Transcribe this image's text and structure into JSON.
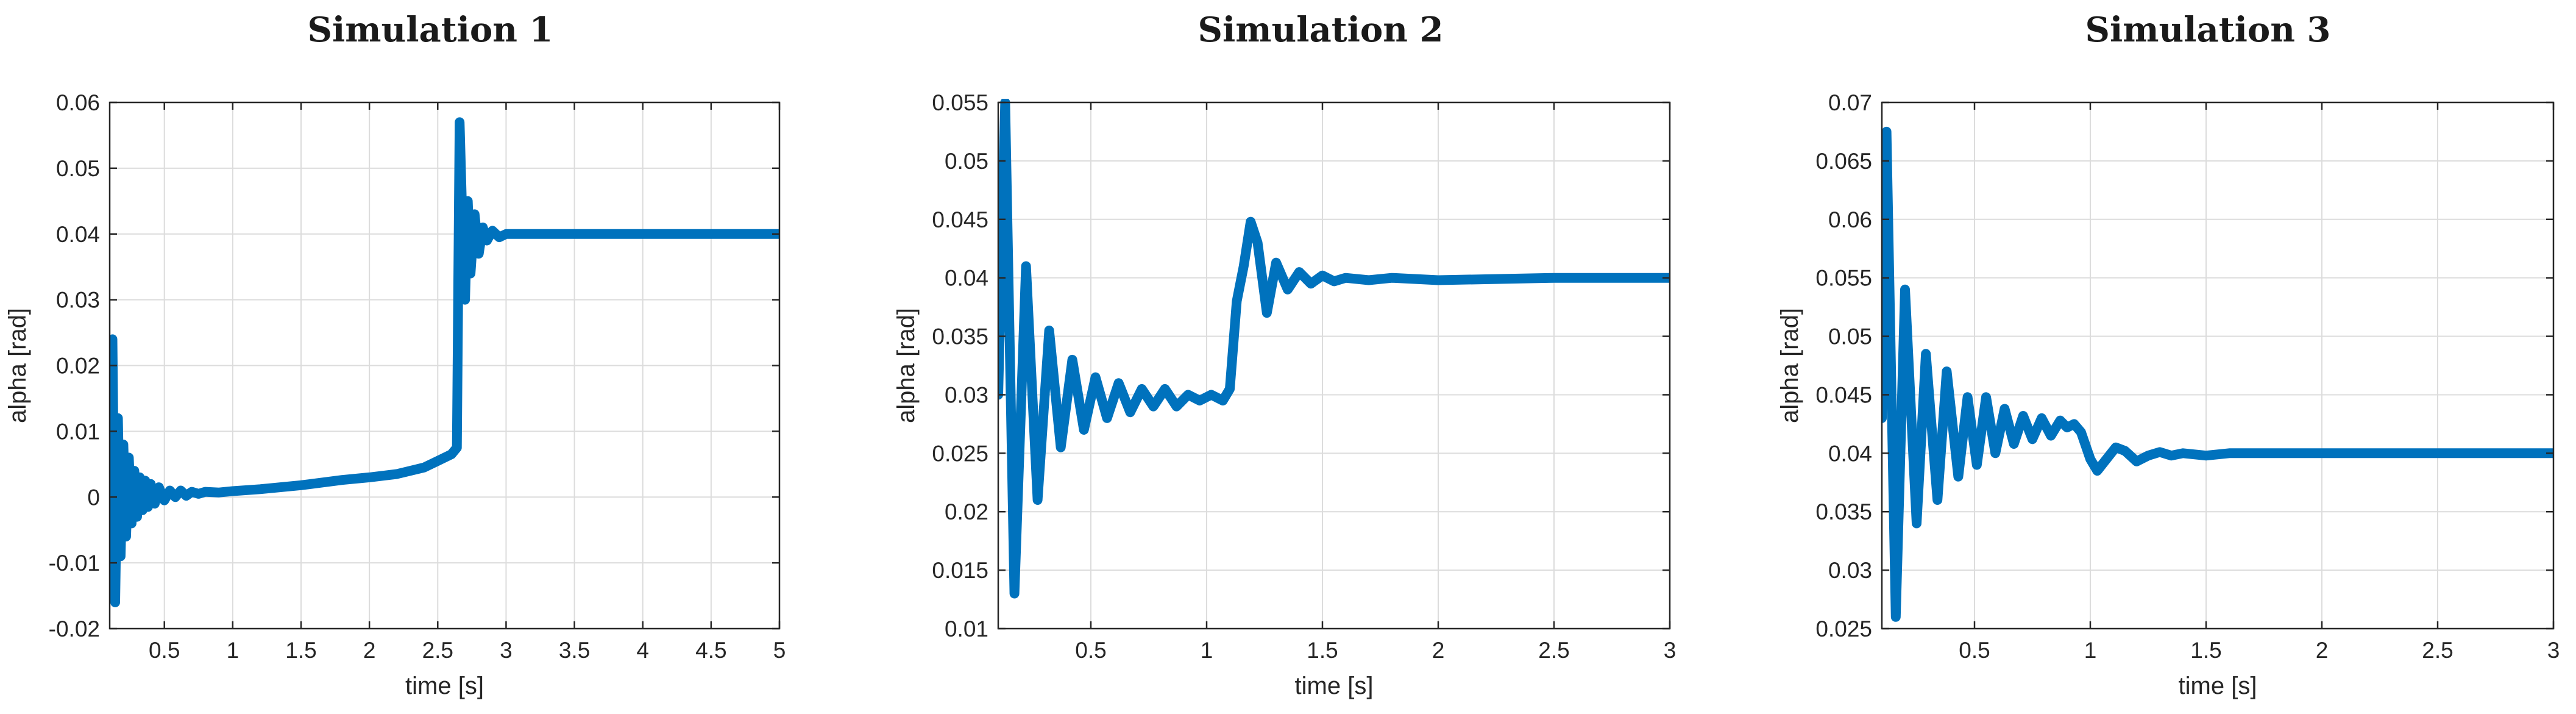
{
  "chart_data": [
    {
      "type": "line",
      "title": "Simulation 1",
      "xlabel": "time [s]",
      "ylabel": "alpha [rad]",
      "xlim": [
        0.1,
        5
      ],
      "ylim": [
        -0.02,
        0.06
      ],
      "xticks": [
        0.5,
        1,
        1.5,
        2,
        2.5,
        3,
        3.5,
        4,
        4.5,
        5
      ],
      "xtick_labels": [
        "0.5",
        "1",
        "1.5",
        "2",
        "2.5",
        "3",
        "3.5",
        "4",
        "4.5",
        "5"
      ],
      "yticks": [
        -0.02,
        -0.01,
        0,
        0.01,
        0.02,
        0.03,
        0.04,
        0.05,
        0.06
      ],
      "ytick_labels": [
        "-0.02",
        "-0.01",
        "0",
        "0.01",
        "0.02",
        "0.03",
        "0.04",
        "0.05",
        "0.06"
      ],
      "grid": true,
      "series": [
        {
          "name": "alpha",
          "color": "#0072BD",
          "x": [
            0.1,
            0.12,
            0.14,
            0.16,
            0.18,
            0.2,
            0.22,
            0.24,
            0.26,
            0.28,
            0.3,
            0.32,
            0.34,
            0.36,
            0.38,
            0.4,
            0.43,
            0.46,
            0.5,
            0.54,
            0.58,
            0.62,
            0.66,
            0.7,
            0.75,
            0.8,
            0.9,
            1.0,
            1.2,
            1.5,
            1.8,
            2.0,
            2.2,
            2.4,
            2.5,
            2.6,
            2.64,
            2.66,
            2.68,
            2.7,
            2.72,
            2.74,
            2.77,
            2.8,
            2.83,
            2.86,
            2.9,
            2.95,
            3.0,
            3.5,
            4.0,
            4.5,
            5.0
          ],
          "y": [
            0.0,
            0.024,
            -0.016,
            0.012,
            -0.009,
            0.008,
            -0.006,
            0.006,
            -0.004,
            0.004,
            -0.003,
            0.003,
            -0.002,
            0.0025,
            -0.0015,
            0.002,
            -0.001,
            0.0015,
            -0.0005,
            0.001,
            0.0,
            0.001,
            0.0002,
            0.0008,
            0.0005,
            0.0008,
            0.0007,
            0.0009,
            0.0012,
            0.0018,
            0.0026,
            0.003,
            0.0035,
            0.0045,
            0.0055,
            0.0065,
            0.0075,
            0.057,
            0.042,
            0.03,
            0.045,
            0.034,
            0.043,
            0.037,
            0.041,
            0.039,
            0.0405,
            0.0395,
            0.04,
            0.04,
            0.04,
            0.04,
            0.04
          ]
        }
      ]
    },
    {
      "type": "line",
      "title": "Simulation 2",
      "xlabel": "time [s]",
      "ylabel": "alpha [rad]",
      "xlim": [
        0.1,
        3
      ],
      "ylim": [
        0.01,
        0.055
      ],
      "xticks": [
        0.5,
        1,
        1.5,
        2,
        2.5,
        3
      ],
      "xtick_labels": [
        "0.5",
        "1",
        "1.5",
        "2",
        "2.5",
        "3"
      ],
      "yticks": [
        0.01,
        0.015,
        0.02,
        0.025,
        0.03,
        0.035,
        0.04,
        0.045,
        0.05,
        0.055
      ],
      "ytick_labels": [
        "0.01",
        "0.015",
        "0.02",
        "0.025",
        "0.03",
        "0.035",
        "0.04",
        "0.045",
        "0.05",
        "0.055"
      ],
      "grid": true,
      "series": [
        {
          "name": "alpha",
          "color": "#0072BD",
          "x": [
            0.1,
            0.13,
            0.17,
            0.22,
            0.27,
            0.32,
            0.37,
            0.42,
            0.47,
            0.52,
            0.57,
            0.62,
            0.67,
            0.72,
            0.77,
            0.82,
            0.87,
            0.92,
            0.97,
            1.02,
            1.07,
            1.1,
            1.13,
            1.16,
            1.19,
            1.22,
            1.26,
            1.3,
            1.35,
            1.4,
            1.45,
            1.5,
            1.55,
            1.6,
            1.7,
            1.8,
            2.0,
            2.5,
            3.0
          ],
          "y": [
            0.03,
            0.055,
            0.013,
            0.041,
            0.021,
            0.0355,
            0.0255,
            0.033,
            0.027,
            0.0315,
            0.028,
            0.031,
            0.0285,
            0.0305,
            0.029,
            0.0305,
            0.029,
            0.03,
            0.0295,
            0.03,
            0.0295,
            0.0305,
            0.038,
            0.041,
            0.0448,
            0.043,
            0.037,
            0.0413,
            0.039,
            0.0405,
            0.0395,
            0.0402,
            0.0397,
            0.04,
            0.0398,
            0.04,
            0.0398,
            0.04,
            0.04
          ]
        }
      ]
    },
    {
      "type": "line",
      "title": "Simulation 3",
      "xlabel": "time [s]",
      "ylabel": "alpha [rad]",
      "xlim": [
        0.1,
        3
      ],
      "ylim": [
        0.025,
        0.07
      ],
      "xticks": [
        0.5,
        1,
        1.5,
        2,
        2.5,
        3
      ],
      "xtick_labels": [
        "0.5",
        "1",
        "1.5",
        "2",
        "2.5",
        "3"
      ],
      "yticks": [
        0.025,
        0.03,
        0.035,
        0.04,
        0.045,
        0.05,
        0.055,
        0.06,
        0.065,
        0.07
      ],
      "ytick_labels": [
        "0.025",
        "0.03",
        "0.035",
        "0.04",
        "0.045",
        "0.05",
        "0.055",
        "0.06",
        "0.065",
        "0.07"
      ],
      "grid": true,
      "series": [
        {
          "name": "alpha",
          "color": "#0072BD",
          "x": [
            0.1,
            0.12,
            0.16,
            0.2,
            0.25,
            0.29,
            0.34,
            0.38,
            0.43,
            0.47,
            0.51,
            0.55,
            0.59,
            0.63,
            0.67,
            0.71,
            0.75,
            0.79,
            0.83,
            0.87,
            0.9,
            0.93,
            0.96,
            1.0,
            1.03,
            1.07,
            1.11,
            1.15,
            1.2,
            1.25,
            1.3,
            1.35,
            1.4,
            1.5,
            1.6,
            2.0,
            2.5,
            3.0
          ],
          "y": [
            0.043,
            0.0675,
            0.026,
            0.054,
            0.034,
            0.0485,
            0.036,
            0.047,
            0.038,
            0.0448,
            0.039,
            0.0448,
            0.04,
            0.0438,
            0.0408,
            0.0432,
            0.0412,
            0.043,
            0.0415,
            0.0428,
            0.0422,
            0.0425,
            0.0418,
            0.0395,
            0.0385,
            0.0395,
            0.0405,
            0.0402,
            0.0393,
            0.0398,
            0.0401,
            0.0398,
            0.04,
            0.0398,
            0.04,
            0.04,
            0.04,
            0.04
          ]
        }
      ]
    }
  ]
}
